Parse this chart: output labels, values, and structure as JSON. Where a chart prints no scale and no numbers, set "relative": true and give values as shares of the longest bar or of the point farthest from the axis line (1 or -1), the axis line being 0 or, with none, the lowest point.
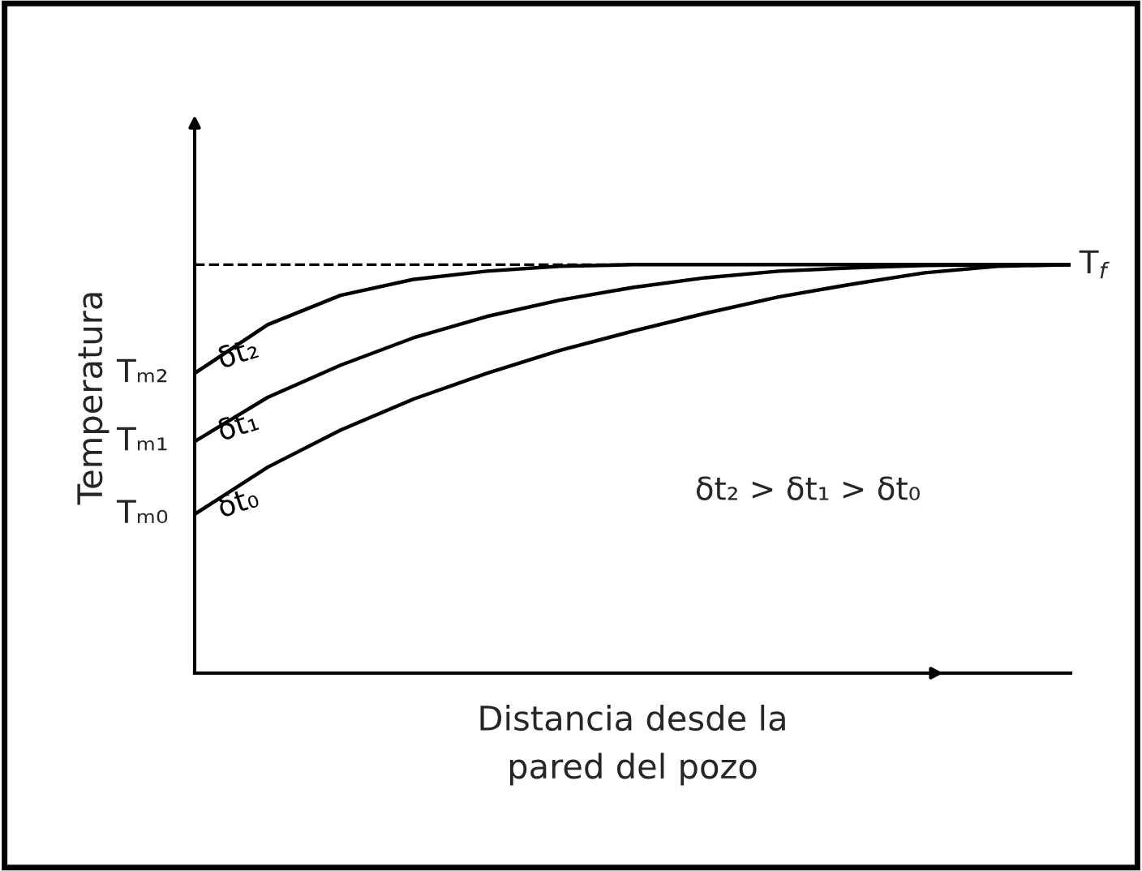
{
  "chart_data": {
    "type": "line",
    "relative": true,
    "xlabel": "Distancia desde la\npared del pozo",
    "ylabel": "Temperatura",
    "marker": "none",
    "line_style": "solid",
    "categories": [
      null,
      null,
      null,
      null,
      null,
      null,
      null,
      null,
      null,
      null,
      null,
      null,
      null
    ],
    "series": [
      {
        "name": "δt₂",
        "color": "#000000",
        "values": [
          0.734,
          0.853,
          0.925,
          0.964,
          0.984,
          0.996,
          1,
          1,
          1,
          1,
          1,
          1,
          1
        ]
      },
      {
        "name": "δt₁",
        "color": "#000000",
        "values": [
          0.567,
          0.675,
          0.754,
          0.821,
          0.873,
          0.913,
          0.944,
          0.968,
          0.984,
          0.992,
          0.998,
          1,
          1
        ]
      },
      {
        "name": "δt₀",
        "color": "#000000",
        "values": [
          0.389,
          0.504,
          0.595,
          0.671,
          0.734,
          0.79,
          0.837,
          0.881,
          0.921,
          0.952,
          0.98,
          0.996,
          1
        ]
      }
    ],
    "ref_lines": [
      {
        "axis": "y",
        "value": 1,
        "label": "T$_{f}$",
        "color": "#000000",
        "line_style": "dashed"
      }
    ],
    "annotations": [
      "Tₘ₂",
      "Tₘ₁",
      "Tₘ₀",
      "δt₂ > δt₁ > δt₀"
    ]
  }
}
